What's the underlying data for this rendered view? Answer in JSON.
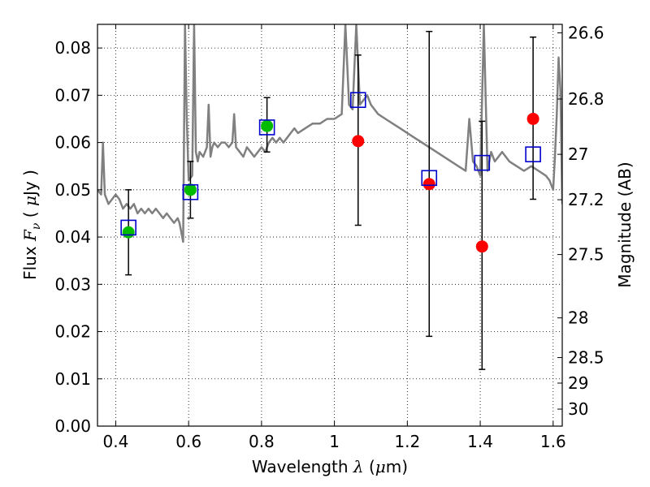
{
  "chart_data": {
    "type": "scatter",
    "title": "",
    "xlabel": "Wavelength  λ (μm)",
    "ylabel": "Flux  F_ν  ( μJy )",
    "ylabel_parts": {
      "pre": "Flux  ",
      "sym": "F",
      "sub": "ν",
      "mid": "  ( ",
      "mu": "μ",
      "post": "Jy )"
    },
    "xlabel_parts": {
      "pre": "Wavelength  ",
      "sym": "λ",
      "mid": " (",
      "mu": "μ",
      "post": "m)"
    },
    "y2label": "Magnitude (AB)",
    "xlim": [
      0.35,
      1.625
    ],
    "ylim": [
      0.0,
      0.085
    ],
    "grid": true,
    "x_ticks": [
      0.4,
      0.6,
      0.8,
      1.0,
      1.2,
      1.4,
      1.6
    ],
    "x_tick_labels": [
      "0.4",
      "0.6",
      "0.8",
      "1",
      "1.2",
      "1.4",
      "1.6"
    ],
    "y_ticks": [
      0.0,
      0.01,
      0.02,
      0.03,
      0.04,
      0.05,
      0.06,
      0.07,
      0.08
    ],
    "y_tick_labels": [
      "0.00",
      "0.01",
      "0.02",
      "0.03",
      "0.04",
      "0.05",
      "0.06",
      "0.07",
      "0.08"
    ],
    "y2_ticks": [
      {
        "label": "26.6",
        "flux": 0.0832
      },
      {
        "label": "26.8",
        "flux": 0.0692
      },
      {
        "label": "27",
        "flux": 0.0575
      },
      {
        "label": "27.2",
        "flux": 0.0479
      },
      {
        "label": "27.5",
        "flux": 0.0363
      },
      {
        "label": "28",
        "flux": 0.0229
      },
      {
        "label": "28.5",
        "flux": 0.0145
      },
      {
        "label": "29",
        "flux": 0.0091
      },
      {
        "label": "30",
        "flux": 0.0036
      }
    ],
    "series": [
      {
        "name": "model spectrum",
        "kind": "line",
        "color": "#808080",
        "x": [
          0.35,
          0.36,
          0.365,
          0.37,
          0.38,
          0.39,
          0.4,
          0.41,
          0.42,
          0.43,
          0.44,
          0.45,
          0.46,
          0.47,
          0.48,
          0.49,
          0.5,
          0.51,
          0.52,
          0.53,
          0.54,
          0.55,
          0.56,
          0.57,
          0.575,
          0.58,
          0.585,
          0.59,
          0.595,
          0.6,
          0.61,
          0.615,
          0.62,
          0.625,
          0.63,
          0.64,
          0.65,
          0.655,
          0.66,
          0.665,
          0.67,
          0.68,
          0.69,
          0.7,
          0.71,
          0.72,
          0.725,
          0.73,
          0.74,
          0.75,
          0.76,
          0.77,
          0.78,
          0.79,
          0.8,
          0.81,
          0.82,
          0.83,
          0.84,
          0.85,
          0.86,
          0.87,
          0.88,
          0.89,
          0.9,
          0.92,
          0.94,
          0.96,
          0.98,
          1.0,
          1.02,
          1.03,
          1.04,
          1.05,
          1.06,
          1.07,
          1.08,
          1.09,
          1.1,
          1.12,
          1.14,
          1.16,
          1.18,
          1.2,
          1.22,
          1.24,
          1.26,
          1.28,
          1.3,
          1.32,
          1.34,
          1.36,
          1.37,
          1.38,
          1.39,
          1.4,
          1.41,
          1.42,
          1.43,
          1.44,
          1.45,
          1.46,
          1.48,
          1.5,
          1.52,
          1.54,
          1.56,
          1.58,
          1.59,
          1.6,
          1.605,
          1.61,
          1.615,
          1.62,
          1.625
        ],
        "y": [
          0.05,
          0.049,
          0.06,
          0.049,
          0.047,
          0.048,
          0.049,
          0.048,
          0.046,
          0.047,
          0.046,
          0.047,
          0.045,
          0.046,
          0.045,
          0.046,
          0.045,
          0.046,
          0.045,
          0.044,
          0.045,
          0.044,
          0.043,
          0.044,
          0.043,
          0.041,
          0.039,
          0.085,
          0.065,
          0.052,
          0.053,
          0.085,
          0.058,
          0.056,
          0.058,
          0.057,
          0.059,
          0.068,
          0.057,
          0.059,
          0.06,
          0.059,
          0.06,
          0.06,
          0.059,
          0.06,
          0.066,
          0.059,
          0.058,
          0.057,
          0.059,
          0.058,
          0.057,
          0.058,
          0.059,
          0.058,
          0.06,
          0.061,
          0.06,
          0.061,
          0.06,
          0.061,
          0.062,
          0.063,
          0.062,
          0.063,
          0.064,
          0.064,
          0.065,
          0.065,
          0.066,
          0.085,
          0.068,
          0.067,
          0.085,
          0.068,
          0.069,
          0.07,
          0.068,
          0.066,
          0.065,
          0.064,
          0.063,
          0.062,
          0.061,
          0.06,
          0.059,
          0.058,
          0.057,
          0.056,
          0.055,
          0.054,
          0.065,
          0.056,
          0.055,
          0.053,
          0.085,
          0.054,
          0.058,
          0.056,
          0.057,
          0.058,
          0.056,
          0.055,
          0.054,
          0.055,
          0.054,
          0.053,
          0.052,
          0.05,
          0.057,
          0.066,
          0.078,
          0.071,
          0.047
        ]
      },
      {
        "name": "observed (green)",
        "kind": "points",
        "color": "#00bb00",
        "x": [
          0.435,
          0.605,
          0.815
        ],
        "y": [
          0.041,
          0.05,
          0.0635
        ],
        "err_low": [
          0.032,
          0.044,
          0.058
        ],
        "err_high": [
          0.05,
          0.056,
          0.0695
        ]
      },
      {
        "name": "observed (red)",
        "kind": "points",
        "color": "#ff0000",
        "x": [
          1.065,
          1.26,
          1.405,
          1.545
        ],
        "y": [
          0.0603,
          0.0512,
          0.038,
          0.065
        ],
        "err_low": [
          0.0425,
          0.019,
          0.012,
          0.048
        ],
        "err_high": [
          0.0785,
          0.0835,
          0.0645,
          0.0823
        ]
      },
      {
        "name": "model photometry",
        "kind": "squares",
        "color": "#0000cc",
        "x": [
          0.435,
          0.605,
          0.815,
          1.065,
          1.26,
          1.405,
          1.545
        ],
        "y": [
          0.042,
          0.0495,
          0.0632,
          0.069,
          0.0525,
          0.0557,
          0.0575
        ]
      }
    ]
  }
}
